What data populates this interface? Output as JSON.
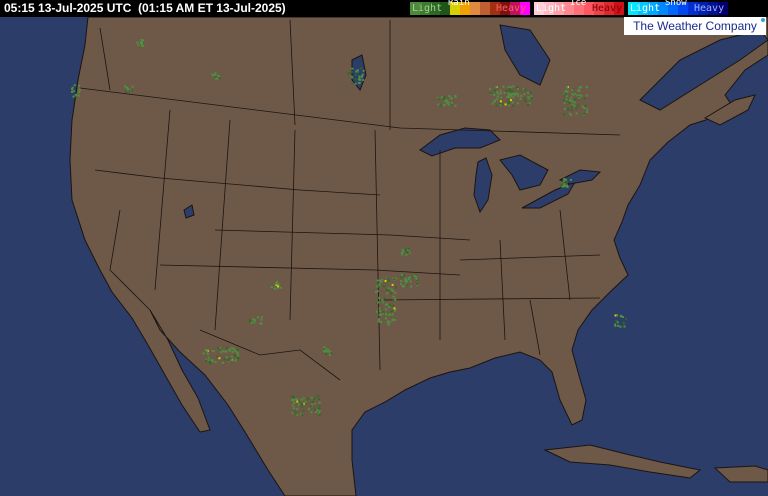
{
  "header": {
    "timestamp": "05:15 13-Jul-2025 UTC  (01:15 AM ET 13-Jul-2025)"
  },
  "legend": {
    "rain": {
      "title": "Rain",
      "light": "Light",
      "heavy": "Heavy",
      "colors": [
        "#4e8a3e",
        "#3f7a31",
        "#2f6824",
        "#1f5518",
        "#d8d000",
        "#f0a000",
        "#e08a40",
        "#c06030",
        "#a03010",
        "#801010",
        "#c01060",
        "#ff00ff"
      ]
    },
    "ice": {
      "title": "Ice",
      "light": "Light",
      "heavy": "Heavy",
      "colors": [
        "#ffd0d8",
        "#ffb8c0",
        "#ffa0a8",
        "#ff8890",
        "#ff7078",
        "#ff5860",
        "#f04048",
        "#e02830",
        "#d01018"
      ]
    },
    "snow": {
      "title": "Snow",
      "light": "Light",
      "heavy": "Heavy",
      "colors": [
        "#00e8ff",
        "#00c8ff",
        "#00a8ff",
        "#0088ff",
        "#0068ff",
        "#0048f0",
        "#0030d0",
        "#0020b0",
        "#001090",
        "#000070"
      ]
    }
  },
  "logo": {
    "text": "The Weather Company"
  },
  "colors": {
    "ocean": "#2c3d69",
    "land": "#6e5949",
    "border": "#1c1410",
    "radar_light": "#4f8f42",
    "radar_mid": "#2e6a24",
    "radar_yellow": "#d8d000"
  }
}
